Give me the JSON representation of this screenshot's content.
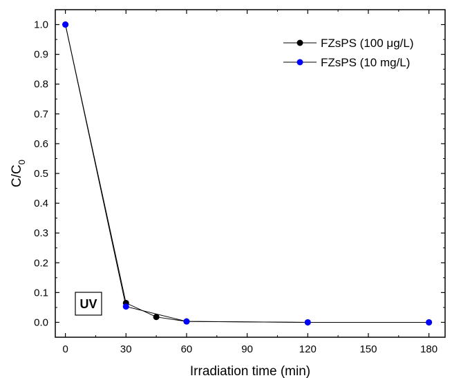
{
  "chart_data": {
    "type": "line",
    "title": "",
    "xlabel": "Irradiation time (min)",
    "ylabel": {
      "main": "C/C",
      "sub": "0"
    },
    "xlim": [
      -5,
      188
    ],
    "ylim": [
      -0.05,
      1.05
    ],
    "xticks": [
      0,
      30,
      60,
      90,
      120,
      150,
      180
    ],
    "yticks": [
      0.0,
      0.1,
      0.2,
      0.3,
      0.4,
      0.5,
      0.6,
      0.7,
      0.8,
      0.9,
      1.0
    ],
    "ytick_labels": [
      "0.0",
      "0.1",
      "0.2",
      "0.3",
      "0.4",
      "0.5",
      "0.6",
      "0.7",
      "0.8",
      "0.9",
      "1.0"
    ],
    "grid": false,
    "legend_position": "top-right",
    "series": [
      {
        "name": "FZsPS (100 μg/L)",
        "color": "#000000",
        "x": [
          0,
          30,
          45,
          60,
          120,
          180
        ],
        "y": [
          1.0,
          0.065,
          0.018,
          0.003,
          0.0,
          0.0
        ]
      },
      {
        "name": "FZsPS (10 mg/L)",
        "color": "#0000ff",
        "x": [
          0,
          30,
          60,
          120,
          180
        ],
        "y": [
          1.0,
          0.053,
          0.003,
          0.0,
          0.0
        ]
      }
    ],
    "annotations": [
      {
        "text": "UV",
        "boxed": true
      }
    ]
  }
}
